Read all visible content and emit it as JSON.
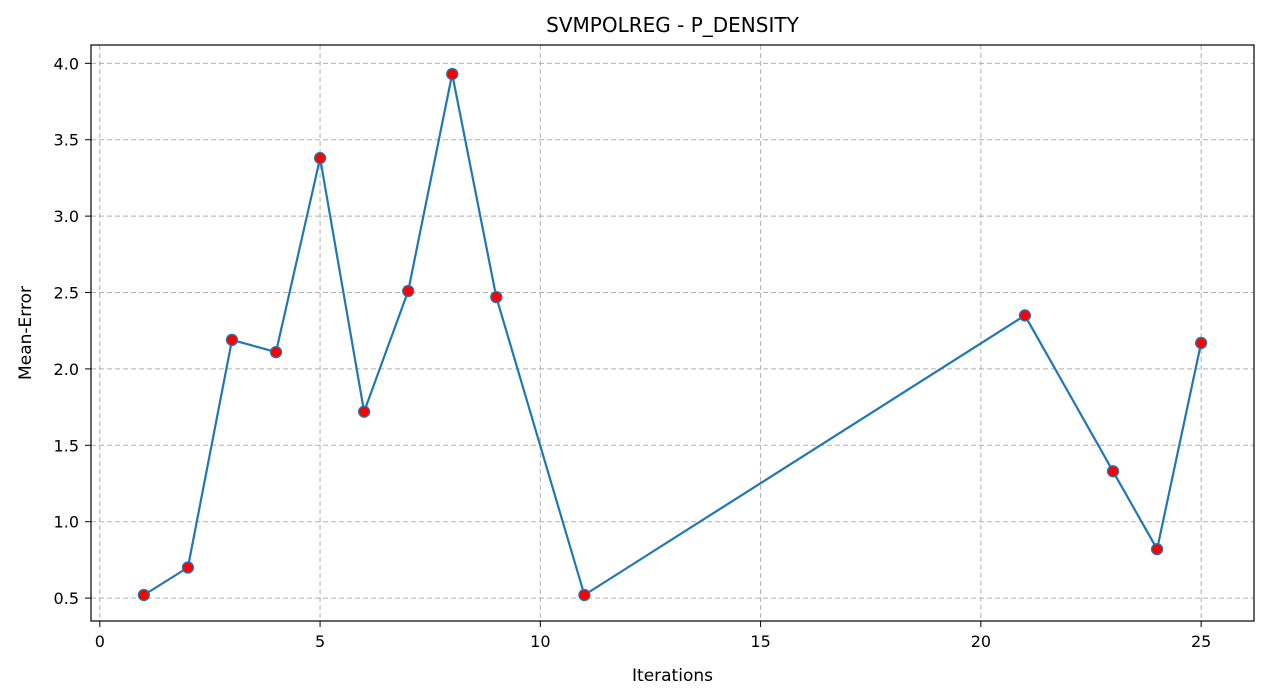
{
  "chart_data": {
    "type": "line",
    "title": "SVMPOLREG - P_DENSITY",
    "xlabel": "Iterations",
    "ylabel": "Mean-Error",
    "xlim": [
      -0.2,
      26.2
    ],
    "ylim": [
      0.35,
      4.12
    ],
    "xticks": [
      0,
      5,
      10,
      15,
      20,
      25
    ],
    "yticks": [
      0.5,
      1.0,
      1.5,
      2.0,
      2.5,
      3.0,
      3.5,
      4.0
    ],
    "xtick_labels": [
      "0",
      "5",
      "10",
      "15",
      "20",
      "25"
    ],
    "ytick_labels": [
      "0.5",
      "1.0",
      "1.5",
      "2.0",
      "2.5",
      "3.0",
      "3.5",
      "4.0"
    ],
    "grid": true,
    "line_color": "#1f77b4",
    "marker_color": "#ff0000",
    "marker_edge_color": "#1f77b4",
    "series": [
      {
        "x": [
          1,
          2,
          3,
          4,
          5,
          6,
          7,
          8,
          9,
          11,
          21,
          23,
          24,
          25
        ],
        "values": [
          0.52,
          0.7,
          2.19,
          2.11,
          3.38,
          1.72,
          2.51,
          3.93,
          2.47,
          0.52,
          2.35,
          1.33,
          0.82,
          2.17
        ]
      }
    ]
  }
}
